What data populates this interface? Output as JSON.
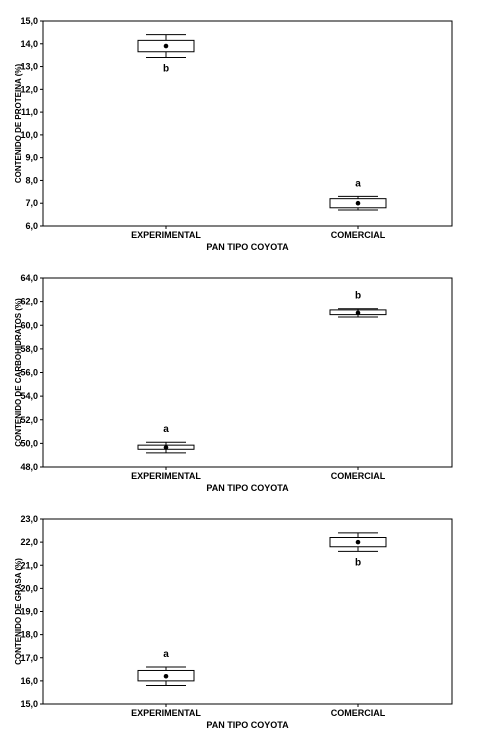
{
  "chart_data": [
    {
      "type": "box",
      "categories": [
        "EXPERIMENTAL",
        "COMERCIAL"
      ],
      "xlabel": "PAN TIPO COYOTA",
      "ylabel": "CONTENIDO DE PROTEINA (%)",
      "ylim": [
        6.0,
        15.0
      ],
      "yticks": [
        "6,0",
        "7,0",
        "8,0",
        "9,0",
        "10,0",
        "11,0",
        "12,0",
        "13,0",
        "14,0",
        "15,0"
      ],
      "series": [
        {
          "category": "EXPERIMENTAL",
          "mean": 13.9,
          "box": [
            13.65,
            14.15
          ],
          "whiskers": [
            13.4,
            14.4
          ],
          "letter": "b",
          "letter_pos": "below"
        },
        {
          "category": "COMERCIAL",
          "mean": 7.0,
          "box": [
            6.8,
            7.2
          ],
          "whiskers": [
            6.7,
            7.3
          ],
          "letter": "a",
          "letter_pos": "above"
        }
      ]
    },
    {
      "type": "box",
      "categories": [
        "EXPERIMENTAL",
        "COMERCIAL"
      ],
      "xlabel": "PAN TIPO COYOTA",
      "ylabel": "CONTENIDO DE CARBOHIDRATOS (%)",
      "ylim": [
        48.0,
        64.0
      ],
      "yticks": [
        "48,0",
        "50,0",
        "52,0",
        "54,0",
        "56,0",
        "58,0",
        "60,0",
        "62,0",
        "64,0"
      ],
      "series": [
        {
          "category": "EXPERIMENTAL",
          "mean": 49.65,
          "box": [
            49.5,
            49.85
          ],
          "whiskers": [
            49.2,
            50.1
          ],
          "letter": "a",
          "letter_pos": "above"
        },
        {
          "category": "COMERCIAL",
          "mean": 61.05,
          "box": [
            60.9,
            61.3
          ],
          "whiskers": [
            60.7,
            61.4
          ],
          "letter": "b",
          "letter_pos": "above"
        }
      ]
    },
    {
      "type": "box",
      "categories": [
        "EXPERIMENTAL",
        "COMERCIAL"
      ],
      "xlabel": "PAN TIPO COYOTA",
      "ylabel": "CONTENIDO DE GRASA (%)",
      "ylim": [
        15.0,
        23.0
      ],
      "yticks": [
        "15,0",
        "16,0",
        "17,0",
        "18,0",
        "19,0",
        "20,0",
        "21,0",
        "22,0",
        "23,0"
      ],
      "series": [
        {
          "category": "EXPERIMENTAL",
          "mean": 16.2,
          "box": [
            16.0,
            16.45
          ],
          "whiskers": [
            15.8,
            16.6
          ],
          "letter": "a",
          "letter_pos": "above"
        },
        {
          "category": "COMERCIAL",
          "mean": 22.0,
          "box": [
            21.8,
            22.2
          ],
          "whiskers": [
            21.6,
            22.4
          ],
          "letter": "b",
          "letter_pos": "below"
        }
      ]
    }
  ]
}
